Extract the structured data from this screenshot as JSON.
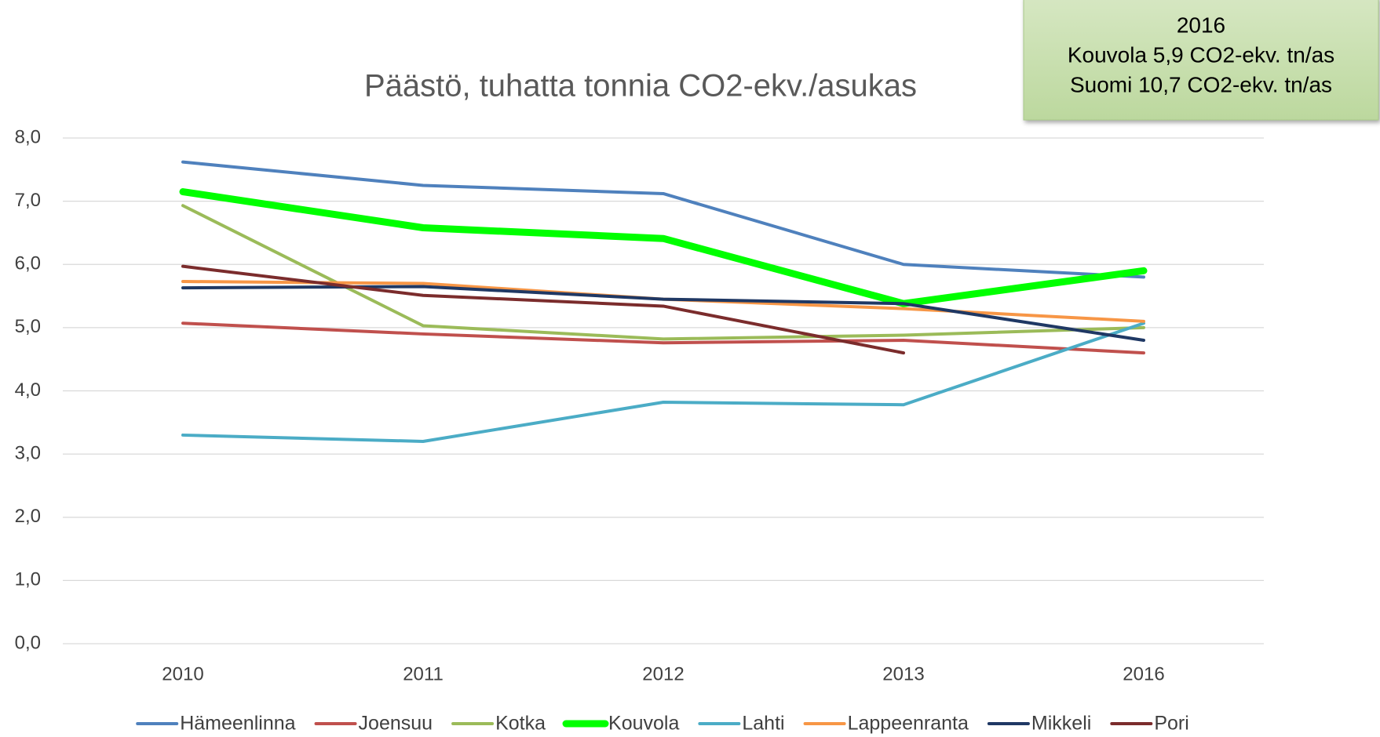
{
  "chart_data": {
    "type": "line",
    "title": "Päästö, tuhatta tonnia CO2-ekv./asukas",
    "annotation": {
      "lines": [
        "2016",
        "Kouvola 5,9 CO2-ekv. tn/as",
        "Suomi  10,7 CO2-ekv. tn/as"
      ]
    },
    "categories": [
      "2010",
      "2011",
      "2012",
      "2013",
      "2016"
    ],
    "ylim": [
      0,
      8
    ],
    "yticks": [
      {
        "value": 0,
        "label": "0,0"
      },
      {
        "value": 1,
        "label": "1,0"
      },
      {
        "value": 2,
        "label": "2,0"
      },
      {
        "value": 3,
        "label": "3,0"
      },
      {
        "value": 4,
        "label": "4,0"
      },
      {
        "value": 5,
        "label": "5,0"
      },
      {
        "value": 6,
        "label": "6,0"
      },
      {
        "value": 7,
        "label": "7,0"
      },
      {
        "value": 8,
        "label": "8,0"
      }
    ],
    "grid": true,
    "legend": "bottom",
    "series": [
      {
        "name": "Hämeenlinna",
        "color": "#4f81bd",
        "values": [
          7.62,
          7.25,
          7.12,
          6.0,
          5.8
        ]
      },
      {
        "name": "Joensuu",
        "color": "#c0504d",
        "values": [
          5.07,
          4.9,
          4.76,
          4.8,
          4.6
        ]
      },
      {
        "name": "Kotka",
        "color": "#9bbb59",
        "values": [
          6.93,
          5.03,
          4.82,
          4.88,
          5.0
        ]
      },
      {
        "name": "Kouvola",
        "color": "#00ff00",
        "highlight": true,
        "values": [
          7.15,
          6.58,
          6.41,
          5.38,
          5.9
        ]
      },
      {
        "name": "Lahti",
        "color": "#4bacc6",
        "values": [
          3.3,
          3.2,
          3.82,
          3.78,
          5.07
        ]
      },
      {
        "name": "Lappeenranta",
        "color": "#f79646",
        "values": [
          5.73,
          5.7,
          5.45,
          5.3,
          5.1
        ]
      },
      {
        "name": "Mikkeli",
        "color": "#1f3864",
        "values": [
          5.63,
          5.65,
          5.45,
          5.38,
          4.8
        ]
      },
      {
        "name": "Pori",
        "color": "#7b2c2c",
        "values": [
          5.97,
          5.51,
          5.34,
          4.6,
          null
        ]
      }
    ]
  }
}
